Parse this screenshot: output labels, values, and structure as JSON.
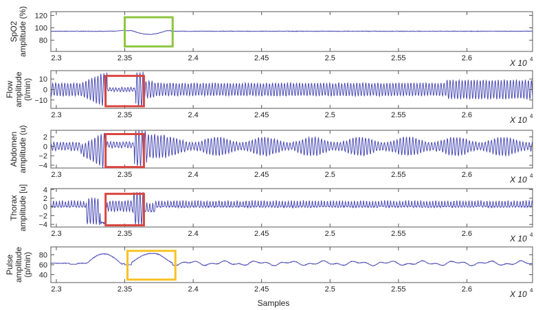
{
  "figure": {
    "xlabel": "Samples",
    "x_multiplier": "X 10",
    "x_multiplier_exp": "4",
    "colors": {
      "signal": "#4b4bb4",
      "axes": "#555555",
      "highlight_spo2": "#8dc63f",
      "highlight_resp": "#d9453f",
      "highlight_pulse": "#f6c324"
    }
  },
  "chart_data": [
    {
      "type": "line",
      "title": "",
      "ylabel_line1": "SpO2",
      "ylabel_line2": "amplitude (%)",
      "xlabel": "",
      "xlim": [
        2.296,
        2.648
      ],
      "ylim": [
        62,
        126
      ],
      "yticks": [
        80,
        100,
        120
      ],
      "ytick_labels": [
        "80",
        "100",
        "120"
      ],
      "xticks": [
        2.3,
        2.35,
        2.4,
        2.45,
        2.5,
        2.55,
        2.6
      ],
      "xtick_labels": [
        "2.3",
        "2.35",
        "2.4",
        "2.45",
        "2.5",
        "2.55",
        "2.6"
      ],
      "x_multiplier": "x 10^4",
      "series": [
        {
          "name": "SpO2",
          "description": "flat around 94-95%, dip to ~89% between 2.355 and 2.38",
          "baseline": 94,
          "dip_min": 89
        }
      ],
      "highlight": {
        "color": "green",
        "x_range": [
          2.35,
          2.385
        ],
        "y_range": [
          70,
          117
        ]
      }
    },
    {
      "type": "line",
      "ylabel_line1": "Flow",
      "ylabel_line2": "amplitude",
      "ylabel_line3": "(l/min)",
      "xlim": [
        2.296,
        2.648
      ],
      "ylim": [
        -18,
        18
      ],
      "yticks": [
        -10,
        0,
        10
      ],
      "ytick_labels": [
        "-10",
        "0",
        "10"
      ],
      "xticks": [
        2.3,
        2.35,
        2.4,
        2.45,
        2.5,
        2.55,
        2.6
      ],
      "xtick_labels": [
        "2.3",
        "2.35",
        "2.4",
        "2.45",
        "2.5",
        "2.55",
        "2.6"
      ],
      "series": [
        {
          "name": "Flow",
          "description": "regular oscillation ~±6 l/min, large swings near 2.33 and 2.36, flattened between 2.335 and 2.358 (apnea), larger amplitude after 2.585"
        }
      ],
      "highlight": {
        "color": "red",
        "x_range": [
          2.336,
          2.364
        ],
        "y_range": [
          -16,
          13
        ]
      }
    },
    {
      "type": "line",
      "ylabel_line1": "Abdomen",
      "ylabel_line2": "amplitude (u)",
      "xlim": [
        2.296,
        2.648
      ],
      "ylim": [
        -4.6,
        3.4
      ],
      "yticks": [
        -4,
        -2,
        0,
        2
      ],
      "ytick_labels": [
        "-4",
        "-2",
        "0",
        "2"
      ],
      "xticks": [
        2.3,
        2.35,
        2.4,
        2.45,
        2.5,
        2.55,
        2.6
      ],
      "xtick_labels": [
        "2.3",
        "2.35",
        "2.4",
        "2.45",
        "2.5",
        "2.55",
        "2.6"
      ],
      "series": [
        {
          "name": "Abdomen",
          "description": "oscillation ~±1 before event, large swings ±4 near 2.325 and 2.36, reduced during 2.336-2.358, ±2 after"
        }
      ],
      "highlight": {
        "color": "red",
        "x_range": [
          2.336,
          2.364
        ],
        "y_range": [
          -4.4,
          2.6
        ]
      }
    },
    {
      "type": "line",
      "ylabel_line1": "Thorax",
      "ylabel_line2": "amplitude [u]",
      "xlim": [
        2.296,
        2.648
      ],
      "ylim": [
        -4.6,
        4.2
      ],
      "yticks": [
        -4,
        -2,
        0,
        2,
        4
      ],
      "ytick_labels": [
        "-4",
        "-2",
        "0",
        "2",
        "4"
      ],
      "xticks": [
        2.3,
        2.35,
        2.4,
        2.45,
        2.5,
        2.55,
        2.6
      ],
      "xtick_labels": [
        "2.3",
        "2.35",
        "2.4",
        "2.45",
        "2.5",
        "2.55",
        "2.6"
      ],
      "series": [
        {
          "name": "Thorax",
          "description": "spiky oscillation 0 to +1.5, large swings near 2.33 and 2.36 down to -4, reduced during event"
        }
      ],
      "highlight": {
        "color": "red",
        "x_range": [
          2.336,
          2.364
        ],
        "y_range": [
          -4.2,
          3.0
        ]
      }
    },
    {
      "type": "line",
      "ylabel_line1": "Pulse",
      "ylabel_line2": "amplitude",
      "ylabel_line3": "(p/min)",
      "xlabel": "Samples",
      "xlim": [
        2.296,
        2.648
      ],
      "ylim": [
        24,
        96
      ],
      "yticks": [
        40,
        60,
        80
      ],
      "ytick_labels": [
        "40",
        "60",
        "80"
      ],
      "xticks": [
        2.3,
        2.35,
        2.4,
        2.45,
        2.5,
        2.55,
        2.6
      ],
      "xtick_labels": [
        "2.3",
        "2.35",
        "2.4",
        "2.45",
        "2.5",
        "2.55",
        "2.6"
      ],
      "series": [
        {
          "name": "Pulse",
          "description": "baseline ~63 p/min, peaks ~82 at 2.34 and ~83 at 2.365, small fluctuations 58-68 afterwards"
        }
      ],
      "highlight": {
        "color": "yellow",
        "x_range": [
          2.352,
          2.387
        ],
        "y_range": [
          30,
          88
        ]
      }
    }
  ]
}
